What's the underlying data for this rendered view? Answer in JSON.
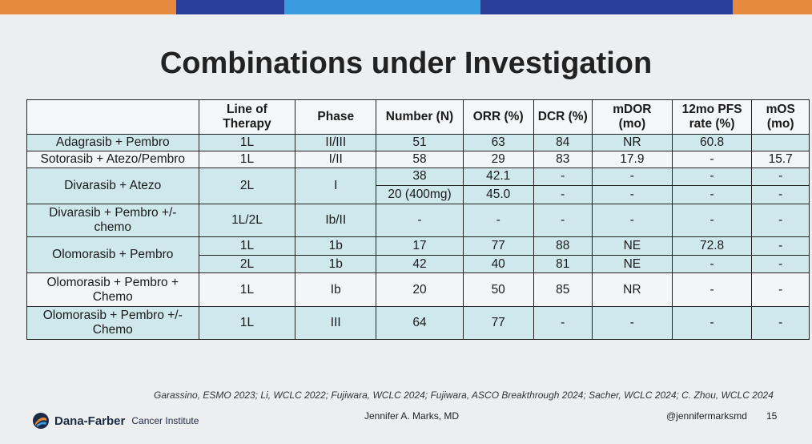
{
  "slide": {
    "title": "Combinations under Investigation",
    "page_number": "15",
    "presenter": "Jennifer A. Marks, MD",
    "handle": "@jennifermarksmd",
    "institution_bold": "Dana-Farber",
    "institution_rest": "Cancer Institute",
    "citation": "Garassino, ESMO 2023; Li, WCLC 2022; Fujiwara, WCLC 2024; Fujiwara, ASCO Breakthrough 2024; Sacher, WCLC 2024;  C. Zhou, WCLC 2024",
    "colors": {
      "top_bar": [
        "#e58a3c",
        "#2a3f9a",
        "#3a9be0",
        "#2a3f9a",
        "#e58a3c"
      ],
      "row_shade": "#cfe8ec",
      "logo": "#1d2a44"
    }
  },
  "table": {
    "headers": {
      "combination": "",
      "line": "Line of\nTherapy",
      "phase": "Phase",
      "number": "Number (N)",
      "orr": "ORR (%)",
      "dcr": "DCR (%)",
      "mdor": "mDOR\n(mo)",
      "pfs": "12mo PFS\nrate (%)",
      "mos": "mOS\n(mo)"
    },
    "rows": {
      "adagrasib": {
        "name": "Adagrasib + Pembro",
        "line": "1L",
        "phase": "II/III",
        "n": "51",
        "orr": "63",
        "dcr": "84",
        "mdor": "NR",
        "pfs": "60.8",
        "mos": ""
      },
      "sotorasib": {
        "name": "Sotorasib + Atezo/Pembro",
        "line": "1L",
        "phase": "I/II",
        "n": "58",
        "orr": "29",
        "dcr": "83",
        "mdor": "17.9",
        "pfs": "-",
        "mos": "15.7"
      },
      "divarasib_atezo": {
        "name": "Divarasib + Atezo",
        "line": "2L",
        "phase": "I",
        "sub": [
          {
            "n": "38",
            "orr": "42.1",
            "dcr": "-",
            "mdor": "-",
            "pfs": "-",
            "mos": "-"
          },
          {
            "n": "20 (400mg)",
            "orr": "45.0",
            "dcr": "-",
            "mdor": "-",
            "pfs": "-",
            "mos": "-"
          }
        ]
      },
      "divarasib_pembro": {
        "name": "Divarasib + Pembro +/-\nchemo",
        "line": "1L/2L",
        "phase": "Ib/II",
        "n": "-",
        "orr": "-",
        "dcr": "-",
        "mdor": "-",
        "pfs": "-",
        "mos": "-"
      },
      "olomorasib_pembro": {
        "name": "Olomorasib + Pembro",
        "sub": [
          {
            "line": "1L",
            "phase": "1b",
            "n": "17",
            "orr": "77",
            "dcr": "88",
            "mdor": "NE",
            "pfs": "72.8",
            "mos": "-"
          },
          {
            "line": "2L",
            "phase": "1b",
            "n": "42",
            "orr": "40",
            "dcr": "81",
            "mdor": "NE",
            "pfs": "-",
            "mos": "-"
          }
        ]
      },
      "olomorasib_chemo": {
        "name": "Olomorasib + Pembro +\nChemo",
        "line": "1L",
        "phase": "Ib",
        "n": "20",
        "orr": "50",
        "dcr": "85",
        "mdor": "NR",
        "pfs": "-",
        "mos": "-"
      },
      "olomorasib_chemo_opt": {
        "name": "Olomorasib + Pembro +/-\nChemo",
        "line": "1L",
        "phase": "III",
        "n": "64",
        "orr": "77",
        "dcr": "-",
        "mdor": "-",
        "pfs": "-",
        "mos": "-"
      }
    }
  }
}
